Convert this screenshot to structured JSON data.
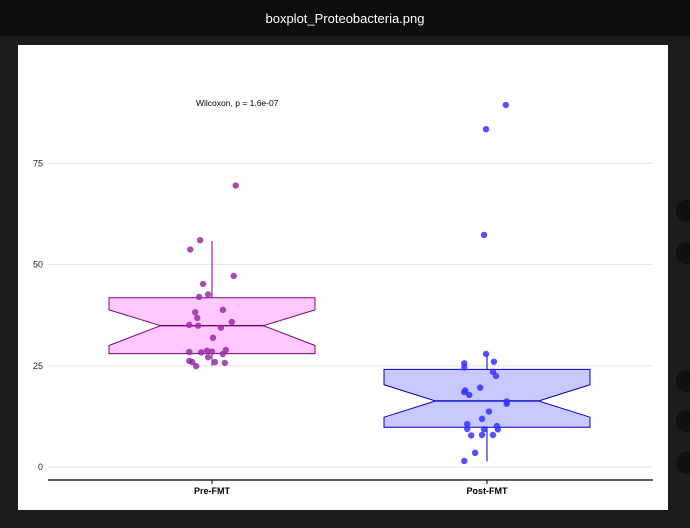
{
  "window": {
    "title": "boxplot_Proteobacteria.png"
  },
  "chart_data": {
    "type": "box",
    "title": "",
    "xlabel": "",
    "ylabel": "",
    "annotation": "Wilcoxon, p = 1.6e-07",
    "categories": [
      "Pre-FMT",
      "Post-FMT"
    ],
    "y_ticks": [
      0,
      25,
      50,
      75
    ],
    "ylim": [
      -3,
      103
    ],
    "grid": true,
    "notched": true,
    "groups": [
      {
        "name": "Pre-FMT",
        "fill": "#ffc8ff",
        "stroke": "#800080",
        "point_color": "#9b2aa6",
        "q1": 28.0,
        "median": 34.9,
        "q3": 41.8,
        "notch_low": 30.0,
        "notch_high": 38.8,
        "whisker_low": 25.0,
        "whisker_high": 55.8,
        "points": [
          {
            "jitter": 0.24,
            "y": 69.5
          },
          {
            "jitter": -0.12,
            "y": 56.0
          },
          {
            "jitter": -0.22,
            "y": 53.7
          },
          {
            "jitter": 0.22,
            "y": 47.2
          },
          {
            "jitter": -0.09,
            "y": 45.2
          },
          {
            "jitter": -0.04,
            "y": 42.6
          },
          {
            "jitter": -0.13,
            "y": 42.0
          },
          {
            "jitter": 0.11,
            "y": 38.8
          },
          {
            "jitter": -0.17,
            "y": 38.2
          },
          {
            "jitter": -0.15,
            "y": 36.8
          },
          {
            "jitter": 0.2,
            "y": 35.8
          },
          {
            "jitter": -0.23,
            "y": 35.1
          },
          {
            "jitter": -0.14,
            "y": 34.9
          },
          {
            "jitter": 0.09,
            "y": 34.4
          },
          {
            "jitter": 0.01,
            "y": 31.9
          },
          {
            "jitter": 0.14,
            "y": 28.9
          },
          {
            "jitter": -0.05,
            "y": 28.7
          },
          {
            "jitter": -0.23,
            "y": 28.4
          },
          {
            "jitter": 0.0,
            "y": 28.5
          },
          {
            "jitter": -0.11,
            "y": 28.3
          },
          {
            "jitter": 0.11,
            "y": 27.9
          },
          {
            "jitter": -0.04,
            "y": 27.1
          },
          {
            "jitter": -0.23,
            "y": 26.2
          },
          {
            "jitter": -0.2,
            "y": 25.9
          },
          {
            "jitter": 0.03,
            "y": 25.9
          },
          {
            "jitter": 0.13,
            "y": 25.7
          },
          {
            "jitter": -0.16,
            "y": 24.9
          }
        ]
      },
      {
        "name": "Post-FMT",
        "fill": "#c8c8ff",
        "stroke": "#0000c8",
        "point_color": "#3333ff",
        "q1": 9.8,
        "median": 16.3,
        "q3": 24.1,
        "notch_low": 12.3,
        "notch_high": 20.3,
        "whisker_low": 1.4,
        "whisker_high": 27.8,
        "points": [
          {
            "jitter": 0.19,
            "y": 89.4
          },
          {
            "jitter": -0.01,
            "y": 83.4
          },
          {
            "jitter": -0.03,
            "y": 57.3
          },
          {
            "jitter": -0.01,
            "y": 27.9
          },
          {
            "jitter": 0.07,
            "y": 26.0
          },
          {
            "jitter": -0.23,
            "y": 25.6
          },
          {
            "jitter": -0.23,
            "y": 24.6
          },
          {
            "jitter": 0.06,
            "y": 23.5
          },
          {
            "jitter": 0.09,
            "y": 22.5
          },
          {
            "jitter": -0.07,
            "y": 19.6
          },
          {
            "jitter": -0.22,
            "y": 18.9
          },
          {
            "jitter": -0.23,
            "y": 18.5
          },
          {
            "jitter": -0.18,
            "y": 17.8
          },
          {
            "jitter": 0.2,
            "y": 16.2
          },
          {
            "jitter": 0.2,
            "y": 15.6
          },
          {
            "jitter": 0.02,
            "y": 13.7
          },
          {
            "jitter": -0.05,
            "y": 11.9
          },
          {
            "jitter": -0.2,
            "y": 10.6
          },
          {
            "jitter": 0.1,
            "y": 10.1
          },
          {
            "jitter": -0.2,
            "y": 9.4
          },
          {
            "jitter": 0.11,
            "y": 9.3
          },
          {
            "jitter": -0.03,
            "y": 9.3
          },
          {
            "jitter": -0.16,
            "y": 7.8
          },
          {
            "jitter": -0.05,
            "y": 7.9
          },
          {
            "jitter": 0.06,
            "y": 7.9
          },
          {
            "jitter": -0.12,
            "y": 3.5
          },
          {
            "jitter": -0.23,
            "y": 1.5
          }
        ]
      }
    ]
  }
}
